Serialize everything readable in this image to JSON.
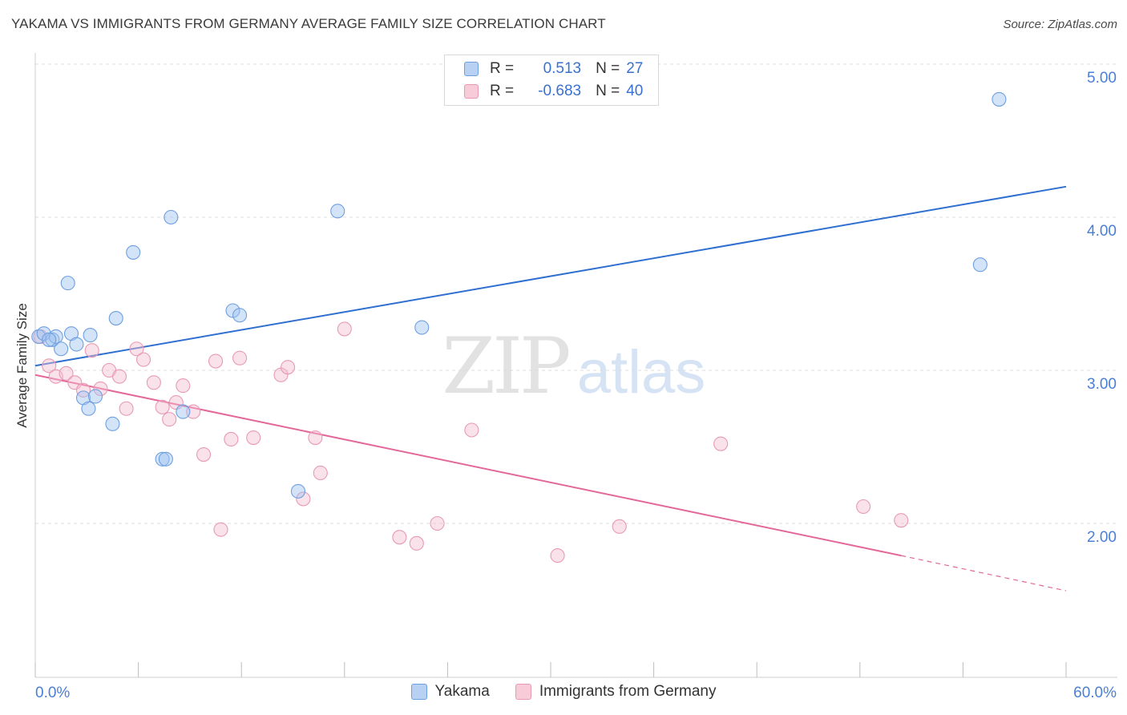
{
  "header": {
    "title": "YAKAMA VS IMMIGRANTS FROM GERMANY AVERAGE FAMILY SIZE CORRELATION CHART",
    "source": "Source: ZipAtlas.com"
  },
  "watermark": {
    "zip": "ZIP",
    "atlas": "atlas"
  },
  "legend": {
    "rows": [
      {
        "r_label": "R =",
        "r_value": "0.513",
        "n_label": "N =",
        "n_value": "27",
        "color": "#a9c8f0",
        "border": "#6a9be0"
      },
      {
        "r_label": "R =",
        "r_value": "-0.683",
        "n_label": "N =",
        "n_value": "40",
        "color": "#f6c4d2",
        "border": "#e892ad"
      }
    ]
  },
  "bottom_legend": {
    "items": [
      "Yakama",
      "Immigrants from Germany"
    ]
  },
  "colors": {
    "blue_fill": "rgba(160,195,240,0.45)",
    "blue_stroke": "#6e9fe0",
    "blue_line": "#2f6fd0",
    "pink_fill": "rgba(245,190,208,0.45)",
    "pink_stroke": "#e89ab4",
    "pink_line": "#e4679a",
    "grid": "#dcdcdc",
    "axis_label": "#4a7fd4"
  },
  "chart_data": {
    "type": "scatter",
    "title": "YAKAMA VS IMMIGRANTS FROM GERMANY AVERAGE FAMILY SIZE CORRELATION CHART",
    "xlabel": "",
    "ylabel": "Average Family Size",
    "xlim": [
      0,
      60
    ],
    "ylim": [
      1.0,
      5.1
    ],
    "x_tick_labels": [
      "0.0%",
      "60.0%"
    ],
    "y_ticks": [
      2.0,
      3.0,
      4.0,
      5.0
    ],
    "y_tick_labels": [
      "2.00",
      "3.00",
      "4.00",
      "5.00"
    ],
    "grid": "horizontal dashed",
    "legend_position": "top-center",
    "series": [
      {
        "name": "Yakama",
        "points": [
          [
            0.2,
            3.22
          ],
          [
            0.5,
            3.24
          ],
          [
            1.0,
            3.2
          ],
          [
            1.2,
            3.22
          ],
          [
            1.5,
            3.14
          ],
          [
            1.9,
            3.57
          ],
          [
            2.1,
            3.24
          ],
          [
            2.4,
            3.17
          ],
          [
            2.8,
            2.82
          ],
          [
            3.1,
            2.75
          ],
          [
            3.2,
            3.23
          ],
          [
            3.5,
            2.83
          ],
          [
            4.5,
            2.65
          ],
          [
            4.7,
            3.34
          ],
          [
            5.7,
            3.77
          ],
          [
            7.4,
            2.42
          ],
          [
            7.6,
            2.42
          ],
          [
            7.9,
            4.0
          ],
          [
            8.6,
            2.73
          ],
          [
            11.5,
            3.39
          ],
          [
            11.9,
            3.36
          ],
          [
            15.3,
            2.21
          ],
          [
            17.6,
            4.04
          ],
          [
            22.5,
            3.28
          ],
          [
            55.0,
            3.69
          ],
          [
            56.1,
            4.77
          ],
          [
            0.8,
            3.2
          ]
        ],
        "trend": {
          "x": [
            0,
            60
          ],
          "y": [
            3.03,
            4.2
          ]
        }
      },
      {
        "name": "Immigrants from Germany",
        "points": [
          [
            0.3,
            3.22
          ],
          [
            0.8,
            3.03
          ],
          [
            1.2,
            2.96
          ],
          [
            1.8,
            2.98
          ],
          [
            2.3,
            2.92
          ],
          [
            2.8,
            2.87
          ],
          [
            3.3,
            3.13
          ],
          [
            3.8,
            2.88
          ],
          [
            4.3,
            3.0
          ],
          [
            4.9,
            2.96
          ],
          [
            5.3,
            2.75
          ],
          [
            5.9,
            3.14
          ],
          [
            6.3,
            3.07
          ],
          [
            6.9,
            2.92
          ],
          [
            7.4,
            2.76
          ],
          [
            7.8,
            2.68
          ],
          [
            8.2,
            2.79
          ],
          [
            8.6,
            2.9
          ],
          [
            9.2,
            2.73
          ],
          [
            9.8,
            2.45
          ],
          [
            10.5,
            3.06
          ],
          [
            10.8,
            1.96
          ],
          [
            11.4,
            2.55
          ],
          [
            11.9,
            3.08
          ],
          [
            12.7,
            2.56
          ],
          [
            14.3,
            2.97
          ],
          [
            14.7,
            3.02
          ],
          [
            15.6,
            2.16
          ],
          [
            16.3,
            2.56
          ],
          [
            16.6,
            2.33
          ],
          [
            18.0,
            3.27
          ],
          [
            21.2,
            1.91
          ],
          [
            22.2,
            1.87
          ],
          [
            23.4,
            2.0
          ],
          [
            25.4,
            2.61
          ],
          [
            30.4,
            1.79
          ],
          [
            34.0,
            1.98
          ],
          [
            39.9,
            2.52
          ],
          [
            48.2,
            2.11
          ],
          [
            50.4,
            2.02
          ]
        ],
        "trend": {
          "x": [
            0,
            50.4
          ],
          "y": [
            2.97,
            1.79
          ]
        },
        "trend_dashed": {
          "x": [
            50.4,
            60
          ],
          "y": [
            1.79,
            1.56
          ]
        }
      }
    ]
  }
}
